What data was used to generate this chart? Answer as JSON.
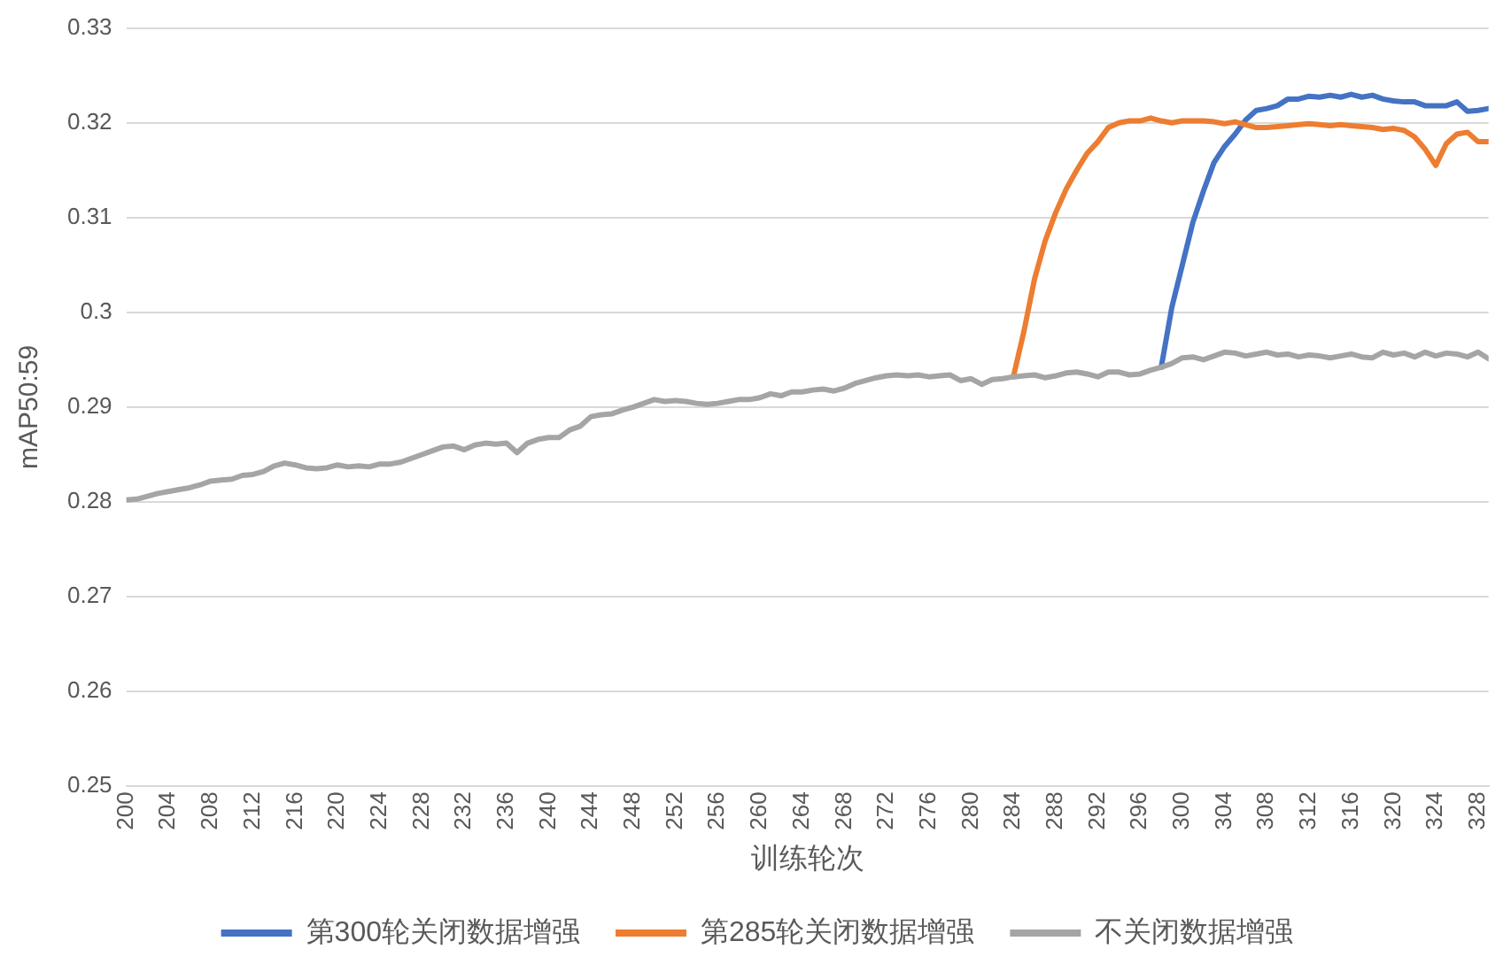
{
  "chart_data": {
    "type": "line",
    "xlabel": "训练轮次",
    "ylabel": "mAP50:59",
    "xlim": [
      200,
      329
    ],
    "xticks": [
      200,
      204,
      208,
      212,
      216,
      220,
      224,
      228,
      232,
      236,
      240,
      244,
      248,
      252,
      256,
      260,
      264,
      268,
      272,
      276,
      280,
      284,
      288,
      292,
      296,
      300,
      304,
      308,
      312,
      316,
      320,
      324,
      328
    ],
    "ylim": [
      0.25,
      0.33
    ],
    "yticks": [
      0.25,
      0.26,
      0.27,
      0.28,
      0.29,
      0.3,
      0.31,
      0.32,
      0.33
    ],
    "grid": "y",
    "legend": "bottom",
    "marker": "none",
    "line_style": "solid",
    "series": [
      {
        "name": "第300轮关闭数据增强",
        "color": "#4472c4",
        "x": [
          298,
          299,
          300,
          301,
          302,
          303,
          304,
          305,
          306,
          307,
          308,
          309,
          310,
          311,
          312,
          313,
          314,
          315,
          316,
          317,
          318,
          319,
          320,
          321,
          322,
          323,
          324,
          325,
          326,
          327,
          328,
          329
        ],
        "values": [
          0.2942,
          0.3005,
          0.305,
          0.3095,
          0.3128,
          0.3158,
          0.3175,
          0.3188,
          0.3203,
          0.3213,
          0.3215,
          0.3218,
          0.3225,
          0.3225,
          0.3228,
          0.3227,
          0.3229,
          0.3227,
          0.323,
          0.3227,
          0.3229,
          0.3225,
          0.3223,
          0.3222,
          0.3222,
          0.3218,
          0.3218,
          0.3218,
          0.3222,
          0.3212,
          0.3213,
          0.3215
        ]
      },
      {
        "name": "第285轮关闭数据增强",
        "color": "#ed7d31",
        "x": [
          284,
          285,
          286,
          287,
          288,
          289,
          290,
          291,
          292,
          293,
          294,
          295,
          296,
          297,
          298,
          299,
          300,
          301,
          302,
          303,
          304,
          305,
          306,
          307,
          308,
          309,
          310,
          311,
          312,
          313,
          314,
          315,
          316,
          317,
          318,
          319,
          320,
          321,
          322,
          323,
          324,
          325,
          326,
          327,
          328,
          329
        ],
        "values": [
          0.2932,
          0.298,
          0.3035,
          0.3075,
          0.3105,
          0.313,
          0.315,
          0.3168,
          0.318,
          0.3195,
          0.32,
          0.3202,
          0.3202,
          0.3205,
          0.3202,
          0.32,
          0.3202,
          0.3202,
          0.3202,
          0.3201,
          0.3199,
          0.3201,
          0.3198,
          0.3195,
          0.3195,
          0.3196,
          0.3197,
          0.3198,
          0.3199,
          0.3198,
          0.3197,
          0.3198,
          0.3197,
          0.3196,
          0.3195,
          0.3193,
          0.3194,
          0.3192,
          0.3185,
          0.3172,
          0.3155,
          0.3178,
          0.3188,
          0.319,
          0.318,
          0.318
        ]
      },
      {
        "name": "不关闭数据增强",
        "color": "#a5a5a5",
        "x": [
          200,
          201,
          202,
          203,
          204,
          205,
          206,
          207,
          208,
          209,
          210,
          211,
          212,
          213,
          214,
          215,
          216,
          217,
          218,
          219,
          220,
          221,
          222,
          223,
          224,
          225,
          226,
          227,
          228,
          229,
          230,
          231,
          232,
          233,
          234,
          235,
          236,
          237,
          238,
          239,
          240,
          241,
          242,
          243,
          244,
          245,
          246,
          247,
          248,
          249,
          250,
          251,
          252,
          253,
          254,
          255,
          256,
          257,
          258,
          259,
          260,
          261,
          262,
          263,
          264,
          265,
          266,
          267,
          268,
          269,
          270,
          271,
          272,
          273,
          274,
          275,
          276,
          277,
          278,
          279,
          280,
          281,
          282,
          283,
          284,
          285,
          286,
          287,
          288,
          289,
          290,
          291,
          292,
          293,
          294,
          295,
          296,
          297,
          298,
          299,
          300,
          301,
          302,
          303,
          304,
          305,
          306,
          307,
          308,
          309,
          310,
          311,
          312,
          313,
          314,
          315,
          316,
          317,
          318,
          319,
          320,
          321,
          322,
          323,
          324,
          325,
          326,
          327,
          328,
          329
        ],
        "values": [
          0.2802,
          0.2803,
          0.2806,
          0.2809,
          0.2811,
          0.2813,
          0.2815,
          0.2818,
          0.2822,
          0.2823,
          0.2824,
          0.2828,
          0.2829,
          0.2832,
          0.2838,
          0.2841,
          0.2839,
          0.2836,
          0.2835,
          0.2836,
          0.2839,
          0.2837,
          0.2838,
          0.2837,
          0.284,
          0.284,
          0.2842,
          0.2846,
          0.285,
          0.2854,
          0.2858,
          0.2859,
          0.2855,
          0.286,
          0.2862,
          0.2861,
          0.2862,
          0.2852,
          0.2862,
          0.2866,
          0.2868,
          0.2868,
          0.2876,
          0.288,
          0.289,
          0.2892,
          0.2893,
          0.2897,
          0.29,
          0.2904,
          0.2908,
          0.2906,
          0.2907,
          0.2906,
          0.2904,
          0.2903,
          0.2904,
          0.2906,
          0.2908,
          0.2908,
          0.291,
          0.2914,
          0.2912,
          0.2916,
          0.2916,
          0.2918,
          0.2919,
          0.2917,
          0.292,
          0.2925,
          0.2928,
          0.2931,
          0.2933,
          0.2934,
          0.2933,
          0.2934,
          0.2932,
          0.2933,
          0.2934,
          0.2928,
          0.293,
          0.2924,
          0.2929,
          0.293,
          0.2932,
          0.2933,
          0.2934,
          0.2931,
          0.2933,
          0.2936,
          0.2937,
          0.2935,
          0.2932,
          0.2937,
          0.2937,
          0.2934,
          0.2935,
          0.2939,
          0.2942,
          0.2946,
          0.2952,
          0.2953,
          0.295,
          0.2954,
          0.2958,
          0.2957,
          0.2954,
          0.2956,
          0.2958,
          0.2955,
          0.2956,
          0.2953,
          0.2955,
          0.2954,
          0.2952,
          0.2954,
          0.2956,
          0.2953,
          0.2952,
          0.2958,
          0.2955,
          0.2957,
          0.2953,
          0.2958,
          0.2954,
          0.2957,
          0.2956,
          0.2953,
          0.2958,
          0.2951
        ]
      }
    ]
  }
}
